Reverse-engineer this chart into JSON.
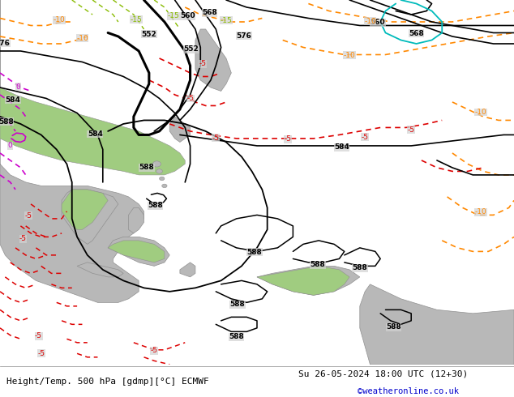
{
  "title_left": "Height/Temp. 500 hPa [gdmp][°C] ECMWF",
  "title_right": "Su 26-05-2024 18:00 UTC (12+30)",
  "credit": "©weatheronline.co.uk",
  "figsize": [
    6.34,
    4.9
  ],
  "dpi": 100,
  "ocean_color": "#d2d2d2",
  "land_color": "#b8b8b8",
  "green_color": "#a0cc80",
  "footer_bg": "#ffffff"
}
